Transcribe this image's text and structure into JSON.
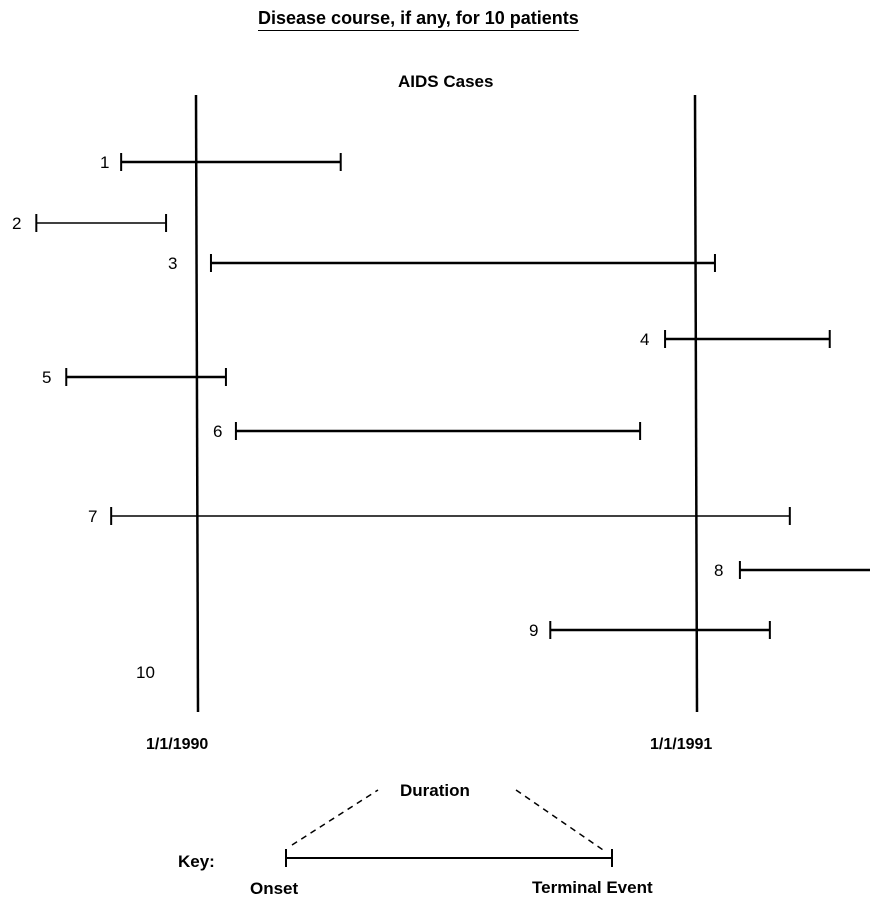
{
  "header": {
    "title": "Disease course, if any, for 10 patients",
    "subtitle": "AIDS Cases"
  },
  "chart_data": {
    "type": "timeline",
    "reference_dates": [
      "1/1/1990",
      "1/1/1991"
    ],
    "patients": [
      {
        "label": "1",
        "start": -0.15,
        "end": 0.29
      },
      {
        "label": "2",
        "start": -0.32,
        "end": -0.06
      },
      {
        "label": "3",
        "start": 0.03,
        "end": 1.04
      },
      {
        "label": "4",
        "start": 0.94,
        "end": 1.27
      },
      {
        "label": "5",
        "start": -0.26,
        "end": 0.06
      },
      {
        "label": "6",
        "start": 0.08,
        "end": 0.89
      },
      {
        "label": "7",
        "start": -0.17,
        "end": 1.19
      },
      {
        "label": "8",
        "start": 1.09,
        "end": 1.36
      },
      {
        "label": "9",
        "start": 0.71,
        "end": 1.15
      },
      {
        "label": "10",
        "start": null,
        "end": null
      }
    ]
  },
  "key": {
    "label": "Key:",
    "duration": "Duration",
    "onset": "Onset",
    "terminal": "Terminal Event"
  }
}
